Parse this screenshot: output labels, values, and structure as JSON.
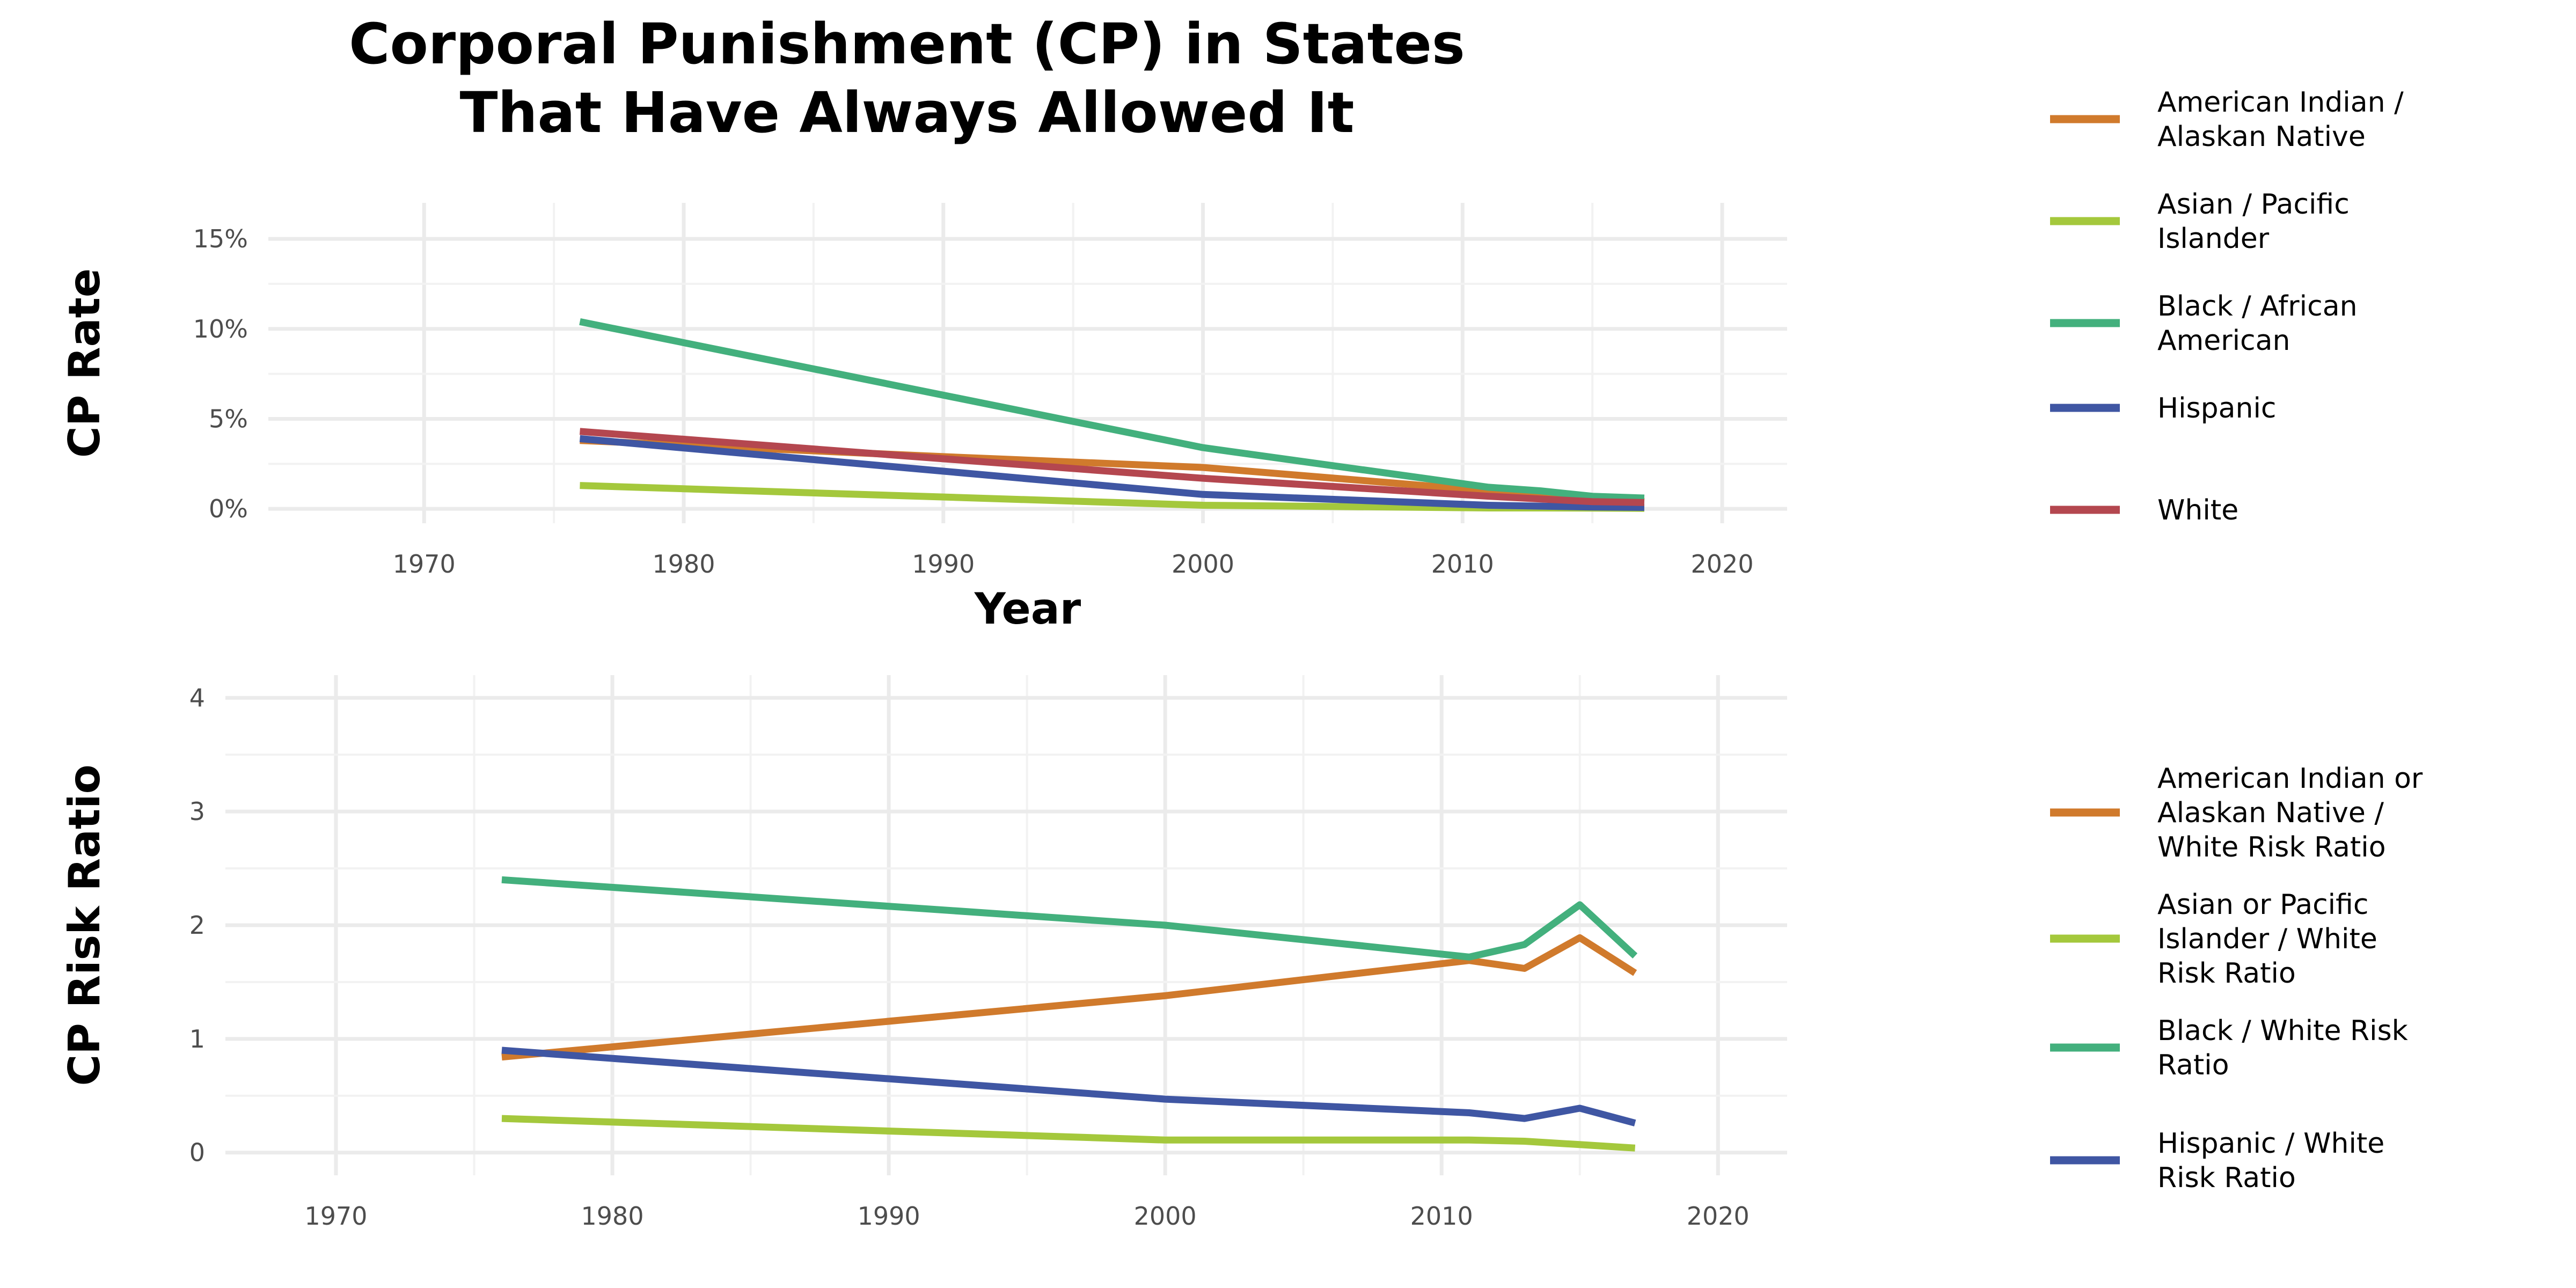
{
  "title_lines": [
    "Corporal Punishment (CP) in States",
    "That Have Always Allowed It"
  ],
  "chart_data": [
    {
      "type": "line",
      "ylabel": "CP Rate",
      "xlabel": "Year",
      "x_ticks": [
        "1970",
        "1980",
        "1990",
        "2000",
        "2010",
        "2020"
      ],
      "y_ticks": [
        "0%",
        "5%",
        "10%",
        "15%"
      ],
      "xlim": [
        1964,
        2022.5
      ],
      "ylim": [
        -0.8,
        17
      ],
      "grid": true,
      "legend_position": "right",
      "series": [
        {
          "name": "American Indian / Alaskan Native",
          "legend_lines": [
            "American Indian /",
            "Alaskan Native"
          ],
          "color": "#d07a2c",
          "points": [
            [
              1976,
              3.8
            ],
            [
              1990,
              2.9
            ],
            [
              2000,
              2.3
            ],
            [
              2011,
              1.0
            ],
            [
              2013,
              0.8
            ],
            [
              2015,
              0.6
            ],
            [
              2017,
              0.4
            ]
          ]
        },
        {
          "name": "Asian / Pacific Islander",
          "legend_lines": [
            "Asian / Pacific",
            "Islander"
          ],
          "color": "#a4c83c",
          "points": [
            [
              1976,
              1.3
            ],
            [
              2000,
              0.2
            ],
            [
              2011,
              0.05
            ],
            [
              2013,
              0.05
            ],
            [
              2015,
              0.04
            ],
            [
              2017,
              0.03
            ]
          ]
        },
        {
          "name": "Black / African American",
          "legend_lines": [
            "Black / African",
            "American"
          ],
          "color": "#43b07d",
          "points": [
            [
              1976,
              10.4
            ],
            [
              2000,
              3.4
            ],
            [
              2011,
              1.2
            ],
            [
              2013,
              1.0
            ],
            [
              2015,
              0.7
            ],
            [
              2017,
              0.6
            ]
          ]
        },
        {
          "name": "Hispanic",
          "legend_lines": [
            "Hispanic"
          ],
          "color": "#3f56a3",
          "points": [
            [
              1976,
              3.9
            ],
            [
              2000,
              0.8
            ],
            [
              2011,
              0.2
            ],
            [
              2013,
              0.15
            ],
            [
              2015,
              0.1
            ],
            [
              2017,
              0.08
            ]
          ]
        },
        {
          "name": "White",
          "legend_lines": [
            "White"
          ],
          "color": "#b4474f",
          "points": [
            [
              1976,
              4.3
            ],
            [
              2000,
              1.7
            ],
            [
              2011,
              0.7
            ],
            [
              2013,
              0.55
            ],
            [
              2015,
              0.4
            ],
            [
              2017,
              0.35
            ]
          ]
        }
      ]
    },
    {
      "type": "line",
      "ylabel": "CP Risk Ratio",
      "xlabel": "",
      "x_ticks": [
        "1970",
        "1980",
        "1990",
        "2000",
        "2010",
        "2020"
      ],
      "y_ticks": [
        "0",
        "1",
        "2",
        "3",
        "4"
      ],
      "xlim": [
        1966,
        2022.5
      ],
      "ylim": [
        -0.2,
        4.2
      ],
      "grid": true,
      "legend_position": "right",
      "series": [
        {
          "name": "American Indian or Alaskan Native / White Risk Ratio",
          "legend_lines": [
            "American Indian or",
            "Alaskan Native /",
            "White Risk Ratio"
          ],
          "color": "#d07a2c",
          "points": [
            [
              1976,
              0.84
            ],
            [
              2000,
              1.38
            ],
            [
              2011,
              1.69
            ],
            [
              2013,
              1.62
            ],
            [
              2015,
              1.89
            ],
            [
              2017,
              1.58
            ]
          ]
        },
        {
          "name": "Asian or Pacific Islander / White Risk Ratio",
          "legend_lines": [
            "Asian or Pacific",
            "Islander / White",
            "Risk Ratio"
          ],
          "color": "#a4c83c",
          "points": [
            [
              1976,
              0.3
            ],
            [
              2000,
              0.11
            ],
            [
              2011,
              0.11
            ],
            [
              2013,
              0.1
            ],
            [
              2015,
              0.07
            ],
            [
              2017,
              0.04
            ]
          ]
        },
        {
          "name": "Black / White Risk Ratio",
          "legend_lines": [
            "Black / White Risk",
            "Ratio"
          ],
          "color": "#43b07d",
          "points": [
            [
              1976,
              2.4
            ],
            [
              2000,
              2.0
            ],
            [
              2011,
              1.72
            ],
            [
              2013,
              1.83
            ],
            [
              2015,
              2.18
            ],
            [
              2017,
              1.73
            ]
          ]
        },
        {
          "name": "Hispanic / White Risk Ratio",
          "legend_lines": [
            "Hispanic / White",
            "Risk Ratio"
          ],
          "color": "#3f56a3",
          "points": [
            [
              1976,
              0.9
            ],
            [
              2000,
              0.47
            ],
            [
              2011,
              0.35
            ],
            [
              2013,
              0.3
            ],
            [
              2015,
              0.39
            ],
            [
              2017,
              0.26
            ]
          ]
        }
      ]
    }
  ]
}
